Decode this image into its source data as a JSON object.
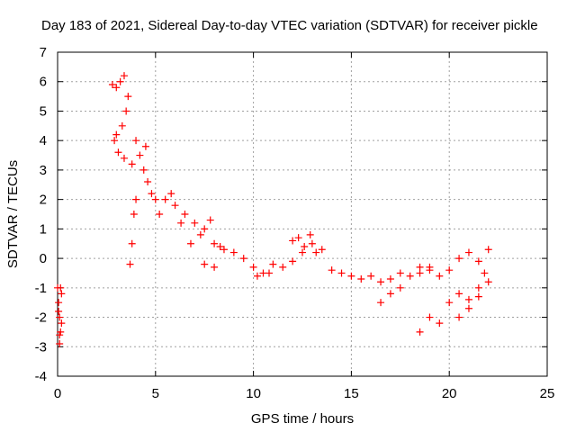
{
  "chart_data": {
    "type": "scatter",
    "title": "Day 183 of 2021, Sidereal Day-to-day VTEC variation (SDTVAR) for receiver pickle",
    "xlabel": "GPS time / hours",
    "ylabel": "SDTVAR / TECUs",
    "xlim": [
      0,
      25
    ],
    "ylim": [
      -4,
      7
    ],
    "xticks": [
      "0",
      "5",
      "10",
      "15",
      "20",
      "25"
    ],
    "yticks": [
      "-4",
      "-3",
      "-2",
      "-1",
      "0",
      "1",
      "2",
      "3",
      "4",
      "5",
      "6",
      "7"
    ],
    "grid": true,
    "marker": "+",
    "series_color": "#ff0000",
    "series": [
      {
        "name": "SDTVAR",
        "x": [
          0.0,
          0.05,
          0.1,
          0.15,
          0.2,
          0.1,
          0.05,
          0.15,
          0.2,
          0.1,
          2.8,
          3.0,
          3.2,
          3.4,
          3.6,
          3.5,
          3.3,
          3.0,
          2.9,
          3.1,
          3.4,
          3.8,
          4.0,
          4.2,
          4.4,
          4.6,
          4.8,
          5.0,
          3.7,
          3.8,
          3.9,
          4.0,
          4.5,
          5.2,
          5.5,
          6.0,
          6.5,
          7.0,
          7.5,
          8.0,
          5.8,
          6.3,
          6.8,
          7.3,
          7.8,
          8.3,
          7.5,
          8.0,
          8.5,
          9.0,
          9.5,
          10.0,
          10.5,
          11.0,
          11.5,
          12.0,
          12.5,
          13.0,
          13.5,
          14.0,
          12.0,
          12.3,
          12.6,
          12.9,
          13.2,
          10.2,
          10.8,
          14.5,
          15.0,
          15.5,
          16.0,
          16.5,
          17.0,
          17.5,
          18.0,
          18.5,
          19.0,
          16.5,
          17.0,
          17.5,
          18.5,
          19.0,
          19.5,
          20.0,
          20.5,
          21.0,
          21.5,
          22.0,
          20.5,
          21.0,
          21.5,
          21.8,
          22.0,
          21.5,
          21.0,
          20.5,
          20.0,
          19.5,
          19.0,
          18.5
        ],
        "y": [
          -1.0,
          -1.5,
          -2.0,
          -2.5,
          -1.2,
          -2.9,
          -1.8,
          -1.0,
          -2.2,
          -2.6,
          5.9,
          5.8,
          6.0,
          6.2,
          5.5,
          5.0,
          4.5,
          4.2,
          4.0,
          3.6,
          3.4,
          3.2,
          4.0,
          3.5,
          3.0,
          2.6,
          2.2,
          2.0,
          -0.2,
          0.5,
          1.5,
          2.0,
          3.8,
          1.5,
          2.0,
          1.8,
          1.5,
          1.2,
          1.0,
          0.5,
          2.2,
          1.2,
          0.5,
          0.8,
          1.3,
          0.4,
          -0.2,
          -0.3,
          0.3,
          0.2,
          0.0,
          -0.3,
          -0.5,
          -0.2,
          -0.3,
          -0.1,
          0.2,
          0.5,
          0.3,
          -0.4,
          0.6,
          0.7,
          0.4,
          0.8,
          0.2,
          -0.6,
          -0.5,
          -0.5,
          -0.6,
          -0.7,
          -0.6,
          -0.8,
          -0.7,
          -0.5,
          -0.6,
          -0.3,
          -0.4,
          -1.5,
          -1.2,
          -1.0,
          -0.5,
          -0.3,
          -0.6,
          -0.4,
          0.0,
          0.2,
          -0.1,
          0.3,
          -1.2,
          -1.4,
          -1.0,
          -0.5,
          -0.8,
          -1.3,
          -1.7,
          -2.0,
          -1.5,
          -2.2,
          -2.0,
          -2.5
        ]
      }
    ]
  }
}
